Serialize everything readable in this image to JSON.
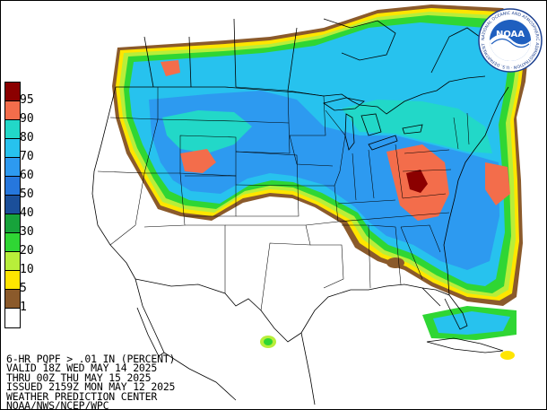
{
  "legend": {
    "levels": [
      {
        "label": "95",
        "color": "#8b0000"
      },
      {
        "label": "90",
        "color": "#f36d4b"
      },
      {
        "label": "80",
        "color": "#22d8c8"
      },
      {
        "label": "70",
        "color": "#27c2ee"
      },
      {
        "label": "60",
        "color": "#2d9af0"
      },
      {
        "label": "50",
        "color": "#2677dd"
      },
      {
        "label": "40",
        "color": "#1b4f9a"
      },
      {
        "label": "30",
        "color": "#17a33b"
      },
      {
        "label": "20",
        "color": "#2fd634"
      },
      {
        "label": "10",
        "color": "#b8ee3a"
      },
      {
        "label": "5",
        "color": "#ffe500"
      },
      {
        "label": "1",
        "color": "#8b5a2b"
      },
      {
        "label": "",
        "color": "#ffffff"
      }
    ]
  },
  "caption": {
    "line1": "6-HR PQPF > .01 IN (PERCENT)",
    "line2": "VALID 18Z WED MAY 14 2025",
    "line3": "THRU 00Z THU MAY 15 2025",
    "line4": "ISSUED 2159Z MON MAY 12 2025",
    "line5": "WEATHER PREDICTION CENTER",
    "line6": "NOAA/NWS/NCEP/WPC"
  },
  "logo": {
    "text": "NOAA",
    "ring_text": "NATIONAL OCEANIC AND ATMOSPHERIC ADMINISTRATION · U.S. DEPARTMENT OF COMMERCE"
  }
}
